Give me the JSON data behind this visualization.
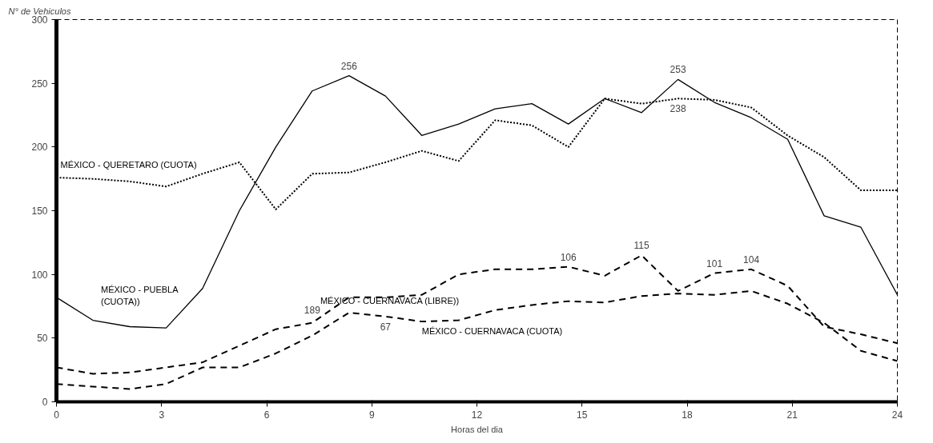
{
  "chart_data": {
    "type": "line",
    "xlabel": "Horas del dia",
    "ylabel": "N° de Vehiculos",
    "x": [
      0,
      1.04,
      2.09,
      3.13,
      4.17,
      5.22,
      6.26,
      7.3,
      8.35,
      9.39,
      10.43,
      11.48,
      12.52,
      13.57,
      14.61,
      15.65,
      16.7,
      17.74,
      18.78,
      19.83,
      20.87,
      21.91,
      22.96,
      24
    ],
    "series": [
      {
        "name": "MÉXICO - PUEBLA (CUOTA))",
        "color": "#000000",
        "line_style": "solid",
        "values": [
          82,
          64,
          59,
          58,
          89,
          150,
          200,
          244,
          256,
          240,
          209,
          218,
          230,
          234,
          218,
          238,
          227,
          253,
          235,
          223,
          206,
          146,
          137,
          84
        ],
        "value_labels": [
          null,
          null,
          null,
          null,
          null,
          null,
          null,
          null,
          "256",
          null,
          null,
          null,
          null,
          null,
          null,
          null,
          null,
          "253",
          null,
          null,
          null,
          null,
          null,
          null
        ]
      },
      {
        "name": "MÉXICO - QUERETARO (CUOTA)",
        "color": "#000000",
        "line_style": "dotted",
        "values": [
          176,
          175,
          173,
          169,
          179,
          188,
          151,
          179,
          180,
          188,
          197,
          189,
          221,
          217,
          200,
          238,
          234,
          238,
          237,
          231,
          209,
          192,
          166,
          166
        ],
        "value_labels": [
          null,
          null,
          null,
          null,
          null,
          null,
          null,
          null,
          null,
          null,
          null,
          null,
          null,
          null,
          null,
          null,
          null,
          "238",
          null,
          null,
          null,
          null,
          null,
          null
        ]
      },
      {
        "name": "MÉXICO - CUERNAVACA (LIBRE))",
        "color": "#000000",
        "line_style": "dashed",
        "values": [
          27,
          22,
          23,
          27,
          31,
          44,
          57,
          62,
          82,
          82,
          84,
          100,
          104,
          104,
          106,
          99,
          115,
          87,
          101,
          104,
          91,
          59,
          53,
          46
        ],
        "value_labels": [
          null,
          null,
          null,
          null,
          null,
          null,
          null,
          null,
          null,
          null,
          null,
          null,
          null,
          null,
          "106",
          null,
          "115",
          null,
          "101",
          "104",
          null,
          null,
          null,
          null
        ]
      },
      {
        "name": "MÉXICO - CUERNAVACA (CUOTA)",
        "color": "#000000",
        "line_style": "dashed",
        "values": [
          14,
          12,
          10,
          14,
          27,
          27,
          38,
          52,
          70,
          67,
          63,
          64,
          72,
          76,
          79,
          78,
          83,
          85,
          84,
          87,
          77,
          62,
          40,
          32
        ],
        "value_labels": [
          null,
          null,
          null,
          null,
          null,
          null,
          null,
          null,
          null,
          "67",
          null,
          null,
          null,
          null,
          null,
          null,
          null,
          null,
          null,
          null,
          null,
          null,
          null,
          null
        ]
      }
    ],
    "annotations": [
      {
        "text": "189",
        "x": 7.3,
        "y": 62
      }
    ],
    "xlim": [
      0,
      24
    ],
    "xticks": [
      0,
      3,
      6,
      9,
      12,
      15,
      18,
      21,
      24
    ],
    "ylim": [
      0,
      300
    ],
    "yticks": [
      0,
      50,
      100,
      150,
      200,
      250,
      300
    ],
    "marker": "none",
    "legend": false,
    "grid": false
  }
}
